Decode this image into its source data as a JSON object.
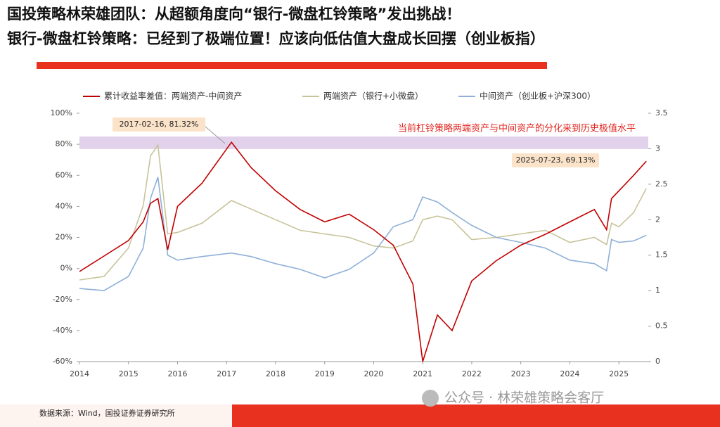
{
  "header": {
    "title_lines": [
      "国投策略林荣雄团队：从超额角度向“银行-微盘杠铃策略”发出挑战！",
      "银行-微盘杠铃策略：已经到了极端位置！应该向低估值大盘成长回摆（创业板指）"
    ]
  },
  "chart_data": {
    "type": "line",
    "annotations": [
      "2017-02-16, 81.32%",
      "2025-07-23, 69.13%",
      "当前杠铃策略两端资产与中间资产的分化来到历史极值水平"
    ],
    "highlight_band": [
      77,
      85
    ],
    "highlight_color": "#d9c6e6",
    "x": [
      2014,
      2014.5,
      2015,
      2015.3,
      2015.45,
      2015.6,
      2015.8,
      2016,
      2016.5,
      2017.1,
      2017.5,
      2018,
      2018.5,
      2019,
      2019.5,
      2020,
      2020.4,
      2020.8,
      2021.0,
      2021.3,
      2021.6,
      2022,
      2022.5,
      2023,
      2023.5,
      2024,
      2024.5,
      2024.75,
      2024.85,
      2025,
      2025.3,
      2025.56
    ],
    "series": [
      {
        "name": "累计收益率差值：两端资产-中间资产",
        "color": "#c00000",
        "values": [
          -2,
          8,
          18,
          30,
          42,
          45,
          12,
          40,
          55,
          81.32,
          65,
          50,
          38,
          30,
          35,
          25,
          15,
          -10,
          -60,
          -30,
          -40,
          -8,
          5,
          15,
          22,
          30,
          38,
          25,
          45,
          50,
          60,
          69.13
        ]
      },
      {
        "name": "两端资产（银行+小微盘）",
        "color": "#c8c39a",
        "axis": "y2",
        "values": [
          1.15,
          1.2,
          1.6,
          2.2,
          2.9,
          3.05,
          1.8,
          1.82,
          1.95,
          2.27,
          2.15,
          2.0,
          1.85,
          1.8,
          1.75,
          1.63,
          1.6,
          1.7,
          2.0,
          2.05,
          2.0,
          1.72,
          1.75,
          1.8,
          1.85,
          1.68,
          1.75,
          1.65,
          1.95,
          1.9,
          2.1,
          2.44
        ]
      },
      {
        "name": "中间资产（创业板+沪深300）",
        "color": "#8fb0d8",
        "axis": "y2",
        "values": [
          1.03,
          1.0,
          1.2,
          1.6,
          2.3,
          2.6,
          1.5,
          1.43,
          1.48,
          1.53,
          1.48,
          1.38,
          1.3,
          1.18,
          1.3,
          1.53,
          1.9,
          2.0,
          2.32,
          2.25,
          2.1,
          1.92,
          1.75,
          1.68,
          1.6,
          1.43,
          1.38,
          1.28,
          1.72,
          1.68,
          1.7,
          1.78
        ]
      }
    ],
    "xlim": [
      2014,
      2025.6
    ],
    "xticks": [
      2014,
      2015,
      2016,
      2017,
      2018,
      2019,
      2020,
      2021,
      2022,
      2023,
      2024,
      2025
    ],
    "ylim": [
      -60,
      100
    ],
    "yticks": [
      {
        "value": -60,
        "label": "-60%"
      },
      {
        "value": -40,
        "label": "-40%"
      },
      {
        "value": -20,
        "label": "-20%"
      },
      {
        "value": 0,
        "label": "0%"
      },
      {
        "value": 20,
        "label": "20%"
      },
      {
        "value": 40,
        "label": "40%"
      },
      {
        "value": 60,
        "label": "60%"
      },
      {
        "value": 80,
        "label": "80%"
      },
      {
        "value": 100,
        "label": "100%"
      }
    ],
    "y2lim": [
      0,
      3.5
    ],
    "y2ticks": [
      0,
      0.5,
      1,
      1.5,
      2,
      2.5,
      3,
      3.5
    ]
  },
  "footer": {
    "source": "数据来源：Wind，国投证券证券研究所",
    "watermark": "公众号 · 林荣雄策略会客厅"
  }
}
